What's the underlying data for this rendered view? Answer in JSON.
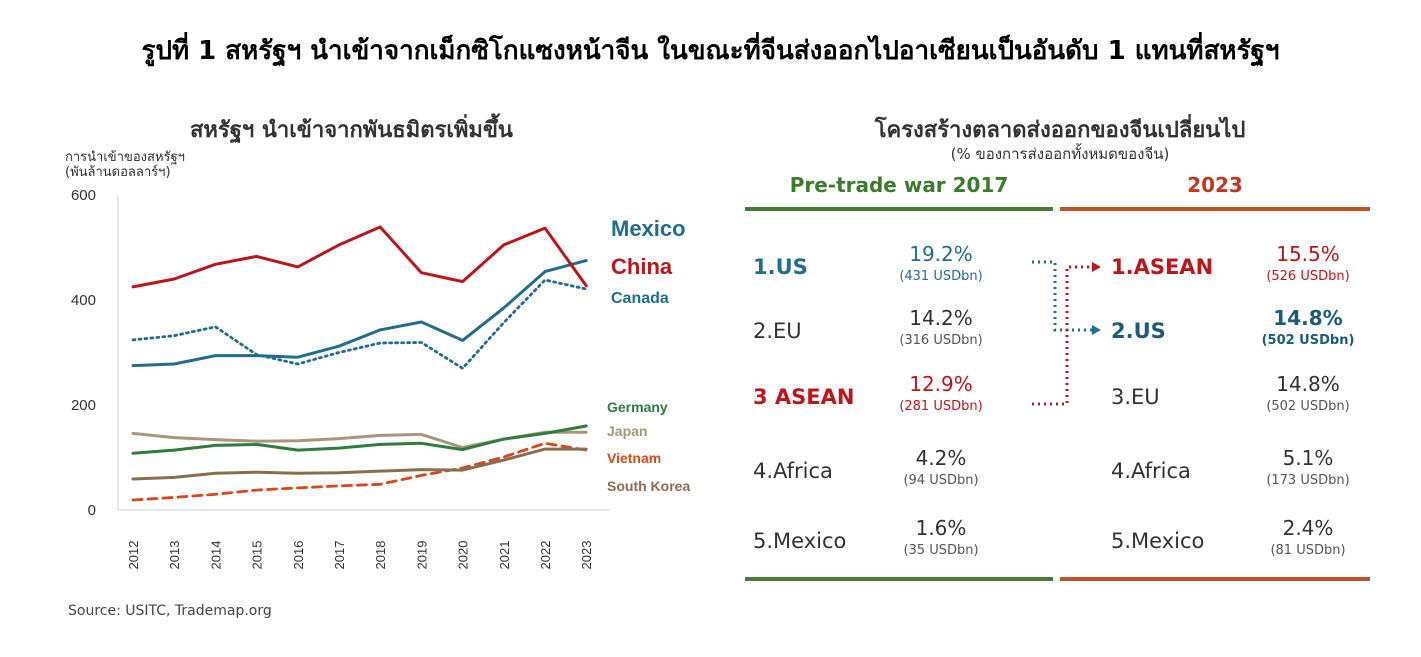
{
  "page_title": "รูปที่ 1 สหรัฐฯ นำเข้าจากเม็กซิโกแซงหน้าจีน ในขณะที่จีนส่งออกไปอาเซียนเป็นอันดับ 1 แทนที่สหรัฐฯ",
  "source": "Source: USITC, Trademap.org",
  "colors": {
    "mexico": "#1f6e8c",
    "china": "#c0141b",
    "canada": "#1f6e8c",
    "germany": "#2e7d3e",
    "japan": "#a8967a",
    "vietnam": "#d9471a",
    "south_korea": "#8a6d4e",
    "green_rule": "#4a7c34",
    "red_rule": "#c0522a"
  },
  "chart_data": {
    "type": "line",
    "title": "สหรัฐฯ นำเข้าจากพันธมิตรเพิ่มขึ้น",
    "ylabel_line1": "การนำเข้าของสหรัฐฯ",
    "ylabel_line2": "(พันล้านดอลลาร์ฯ)",
    "ylim": [
      0,
      600
    ],
    "yticks": [
      "0",
      "200",
      "400",
      "600"
    ],
    "ytick_values": [
      0,
      200,
      400,
      600
    ],
    "x": [
      "2012",
      "2013",
      "2014",
      "2015",
      "2016",
      "2017",
      "2018",
      "2019",
      "2020",
      "2021",
      "2022",
      "2023"
    ],
    "grid": false,
    "series": [
      {
        "name": "Mexico",
        "style": "solid",
        "color_key": "mexico",
        "label_color": "mexico",
        "values": [
          275,
          278,
          294,
          294,
          291,
          312,
          343,
          358,
          323,
          385,
          454,
          475
        ]
      },
      {
        "name": "China",
        "style": "solid",
        "color_key": "china",
        "label_color": "china",
        "values": [
          425,
          440,
          468,
          483,
          463,
          505,
          539,
          452,
          435,
          505,
          537,
          427
        ]
      },
      {
        "name": "Canada",
        "style": "dotted",
        "color_key": "canada",
        "label_color": "canada",
        "values": [
          324,
          332,
          349,
          296,
          278,
          300,
          318,
          319,
          270,
          357,
          438,
          421
        ]
      },
      {
        "name": "Germany",
        "style": "solid",
        "color_key": "germany",
        "label_color": "germany",
        "values": [
          108,
          114,
          123,
          125,
          114,
          118,
          125,
          127,
          115,
          135,
          146,
          160
        ]
      },
      {
        "name": "Japan",
        "style": "solid",
        "color_key": "japan",
        "label_color": "japan",
        "values": [
          146,
          138,
          134,
          131,
          132,
          136,
          142,
          144,
          119,
          135,
          148,
          148
        ]
      },
      {
        "name": "Vietnam",
        "style": "dashed",
        "color_key": "vietnam",
        "label_color": "vietnam",
        "values": [
          19,
          24,
          30,
          38,
          42,
          46,
          49,
          66,
          80,
          101,
          127,
          114
        ]
      },
      {
        "name": "South Korea",
        "style": "solid",
        "color_key": "south_korea",
        "label_color": "south_korea",
        "values": [
          59,
          62,
          70,
          72,
          70,
          71,
          74,
          77,
          76,
          95,
          116,
          116
        ]
      }
    ]
  },
  "table": {
    "title": "โครงสร้างตลาดส่งออกของจีนเปลี่ยนไป",
    "subtitle": "(% ของการส่งออกทั้งหมดของจีน)",
    "left_header": "Pre-trade war 2017",
    "right_header": "2023",
    "left_rows": [
      {
        "name": "1.US",
        "pct": "19.2%",
        "val": "(431 USDbn)",
        "style": "hl-blue"
      },
      {
        "name": "2.EU",
        "pct": "14.2%",
        "val": "(316 USDbn)",
        "style": ""
      },
      {
        "name": "3 ASEAN",
        "pct": "12.9%",
        "val": "(281 USDbn)",
        "style": "hl-red"
      },
      {
        "name": "4.Africa",
        "pct": "4.2%",
        "val": "(94 USDbn)",
        "style": ""
      },
      {
        "name": "5.Mexico",
        "pct": "1.6%",
        "val": "(35 USDbn)",
        "style": ""
      }
    ],
    "right_rows": [
      {
        "name": "1.ASEAN",
        "pct": "15.5%",
        "val": "(526 USDbn)",
        "style": "hl-red"
      },
      {
        "name": "2.US",
        "pct": "14.8%",
        "val": "(502 USDbn)",
        "style": "hl-navy"
      },
      {
        "name": "3.EU",
        "pct": "14.8%",
        "val": "(502 USDbn)",
        "style": ""
      },
      {
        "name": "4.Africa",
        "pct": "5.1%",
        "val": "(173 USDbn)",
        "style": ""
      },
      {
        "name": "5.Mexico",
        "pct": "2.4%",
        "val": "(81 USDbn)",
        "style": ""
      }
    ]
  }
}
